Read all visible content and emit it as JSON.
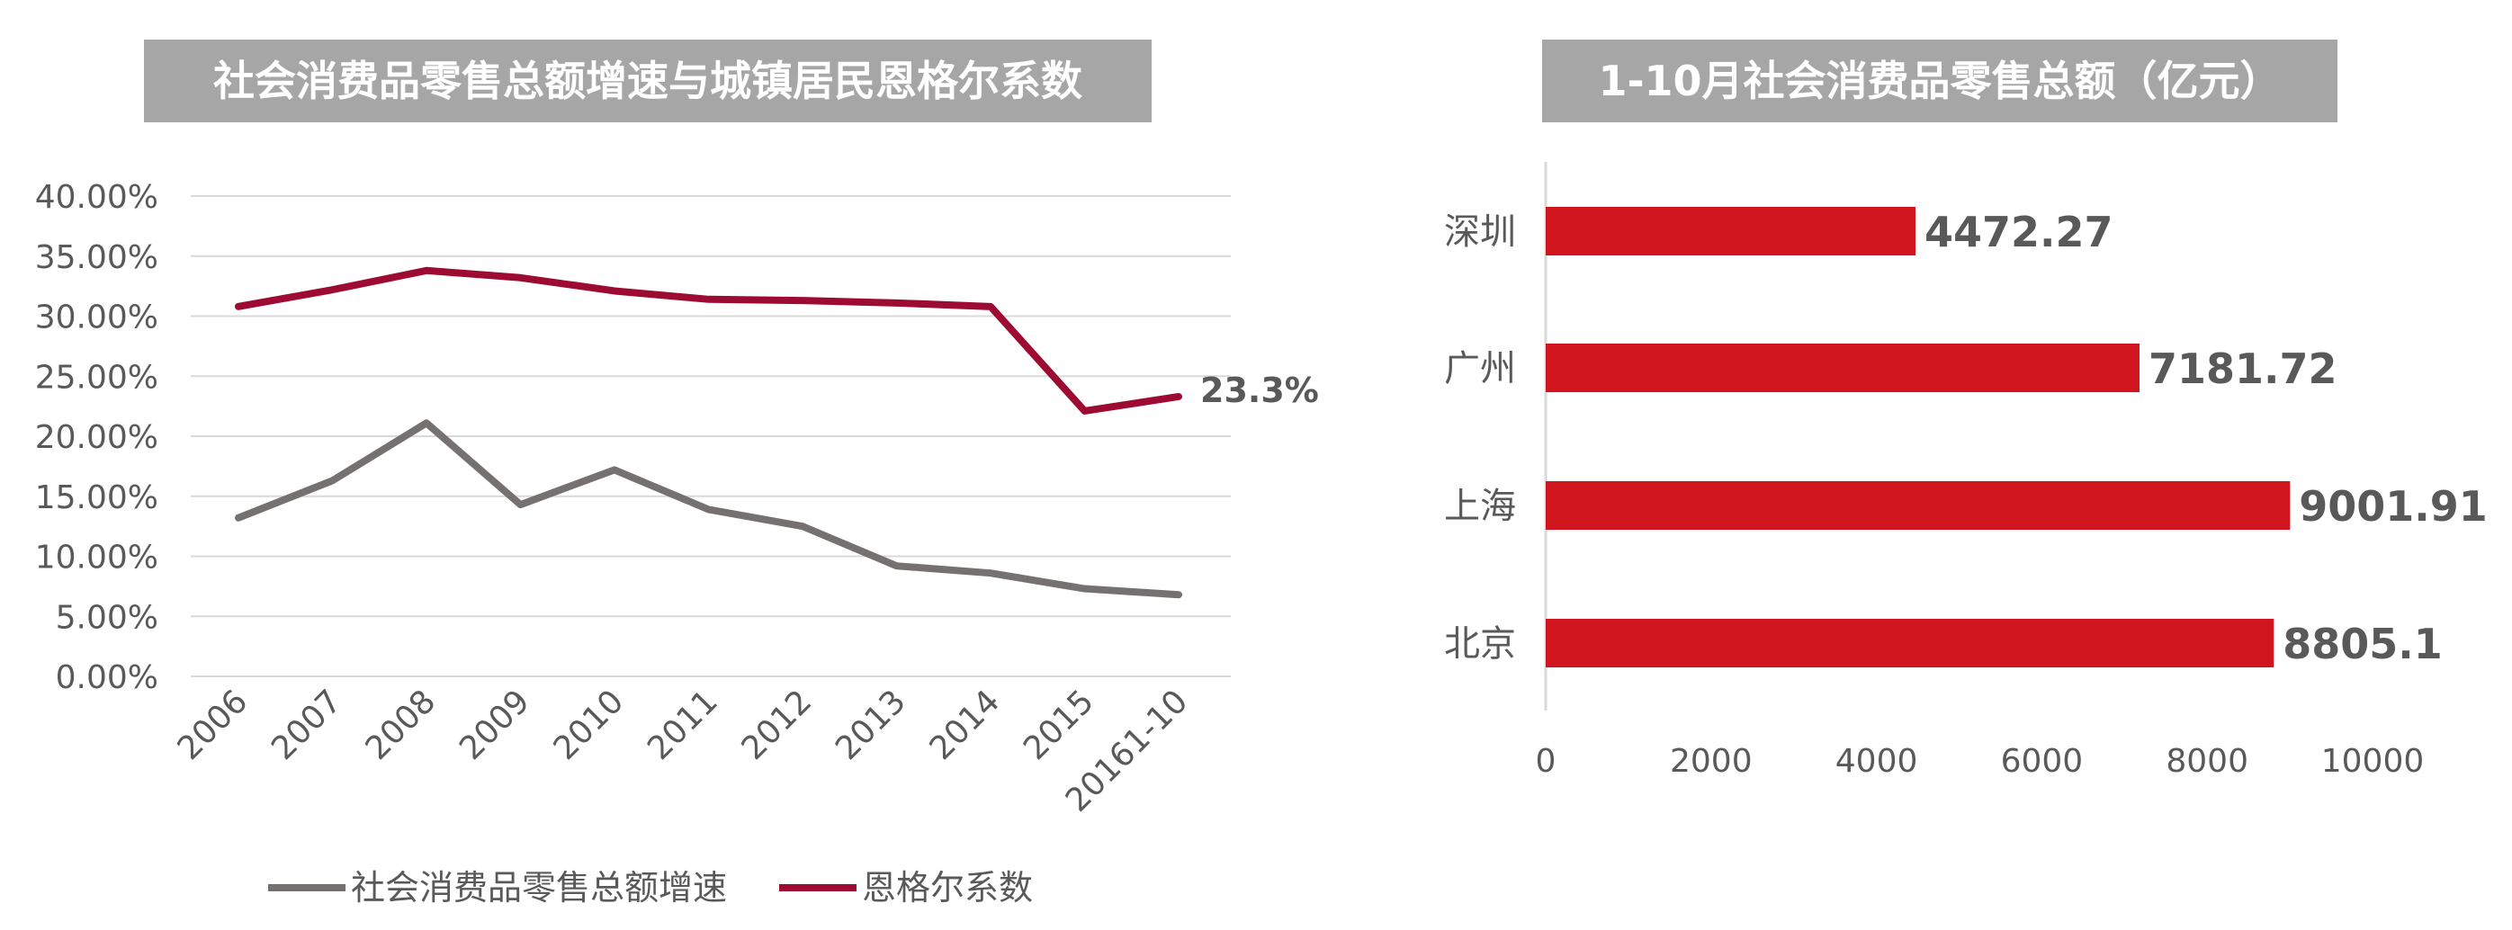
{
  "chart_data": [
    {
      "type": "line",
      "title": "社会消费品零售总额增速与城镇居民恩格尔系数",
      "categories": [
        "2006",
        "2007",
        "2008",
        "2009",
        "2010",
        "2011",
        "2012",
        "2013",
        "2014",
        "2015",
        "20161-10"
      ],
      "series": [
        {
          "name": "社会消费品零售总额增速",
          "color": "#767171",
          "values": [
            13.2,
            16.3,
            21.1,
            14.3,
            17.2,
            13.9,
            12.5,
            9.2,
            8.6,
            7.3,
            6.8
          ]
        },
        {
          "name": "恩格尔系数",
          "color": "#9e0b32",
          "values": [
            30.8,
            32.2,
            33.8,
            33.2,
            32.1,
            31.4,
            31.3,
            31.1,
            30.8,
            22.1,
            23.3
          ]
        }
      ],
      "annotation": "23.3%",
      "y_ticks": [
        "40.00%",
        "35.00%",
        "30.00%",
        "25.00%",
        "20.00%",
        "15.00%",
        "10.00%",
        "5.00%",
        "0.00%"
      ],
      "ylim": [
        0,
        40
      ],
      "grid": true,
      "legend": "bottom",
      "xlabel": "",
      "ylabel": ""
    },
    {
      "type": "bar",
      "orientation": "horizontal",
      "title": "1-10月社会消费品零售总额（亿元）",
      "categories": [
        "深圳",
        "广州",
        "上海",
        "北京"
      ],
      "values": [
        4472.27,
        7181.72,
        9001.91,
        8805.1
      ],
      "value_labels": [
        "4472.27",
        "7181.72",
        "9001.91",
        "8805.1"
      ],
      "x_ticks": [
        "0",
        "2000",
        "4000",
        "6000",
        "8000",
        "10000"
      ],
      "xlim": [
        0,
        10000
      ],
      "bar_color": "#d0151f",
      "xlabel": "",
      "ylabel": ""
    }
  ]
}
